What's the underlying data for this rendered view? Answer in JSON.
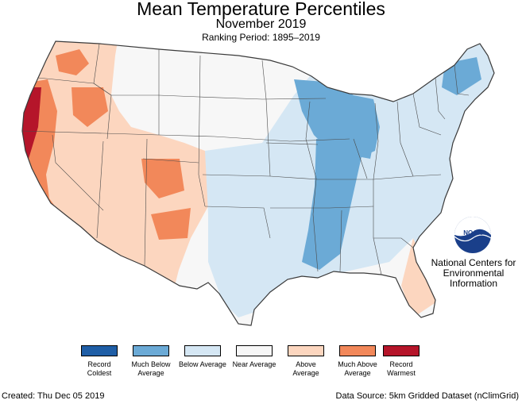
{
  "header": {
    "title": "Mean Temperature Percentiles",
    "subtitle": "November 2019",
    "period": "Ranking Period: 1895–2019"
  },
  "logo": {
    "text": "NOAA",
    "org_name": "National Centers for Environmental Information"
  },
  "legend": [
    {
      "label": "Record Coldest",
      "color": "#1f5ea6"
    },
    {
      "label": "Much Below Average",
      "color": "#6baad6"
    },
    {
      "label": "Below Average",
      "color": "#d5e7f4"
    },
    {
      "label": "Near Average",
      "color": "#f7f7f7"
    },
    {
      "label": "Above Average",
      "color": "#fcd6bf"
    },
    {
      "label": "Much Above Average",
      "color": "#f2885a"
    },
    {
      "label": "Record Warmest",
      "color": "#b5152a"
    }
  ],
  "footer": {
    "created": "Created: Thu Dec 05 2019",
    "source": "Data Source: 5km Gridded Dataset (nClimGrid)"
  }
}
